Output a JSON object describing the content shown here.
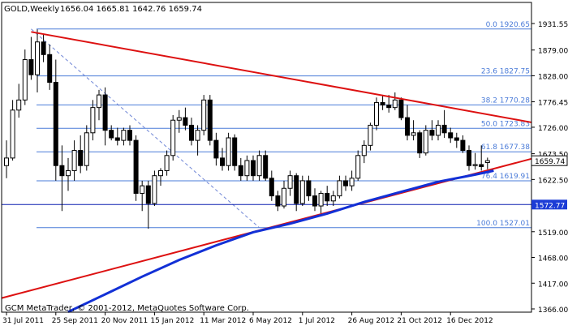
{
  "header": {
    "symbol_period": "GOLD,Weekly",
    "ohlc": "1656.04 1665.81 1642.76 1659.74"
  },
  "footer": {
    "copyright": "GCM MetaTrader, © 2001-2012, MetaQuotes Software Corp."
  },
  "colors": {
    "background": "#ffffff",
    "axis": "#000000",
    "candle": "#000000",
    "fib": "#4a7bd8",
    "fib_dashed": "#6f86d6",
    "trendline": "#dd1111",
    "moving_average": "#1230d6",
    "horizontal_line": "#0a1fb0",
    "price_box": "#1c3cd6"
  },
  "chart_data": {
    "type": "candlestick",
    "symbol": "GOLD",
    "period": "Weekly",
    "last_price": "1659.74",
    "ylim": [
      1366.0,
      1940.0
    ],
    "y_ticks": [
      "1931.55",
      "1879.00",
      "1828.00",
      "1776.45",
      "1726.00",
      "1673.50",
      "1622.50",
      "1519.00",
      "1468.00",
      "1417.00",
      "1366.00"
    ],
    "x_ticks": [
      "31 Jul 2011",
      "25 Sep 2011",
      "20 Nov 2011",
      "15 Jan 2012",
      "11 Mar 2012",
      "6 May 2012",
      "1 Jul 2012",
      "26 Aug 2012",
      "21 Oct 2012",
      "16 Dec 2012"
    ],
    "x_tick_index": [
      0,
      8,
      16,
      24,
      32,
      40,
      48,
      56,
      64,
      72
    ],
    "fib_levels": [
      {
        "label": "0.0 1920.65",
        "value": 1920.65
      },
      {
        "label": "23.6 1827.75",
        "value": 1827.75
      },
      {
        "label": "38.2 1770.28",
        "value": 1770.28
      },
      {
        "label": "50.0 1723.83",
        "value": 1723.83
      },
      {
        "label": "61.8 1677.38",
        "value": 1677.38
      },
      {
        "label": "76.4 1619.91",
        "value": 1619.91
      },
      {
        "label": "100.0 1527.01",
        "value": 1527.01
      }
    ],
    "horizontal_line": {
      "label": "1572.77",
      "value": 1572.77
    },
    "candles": [
      {
        "o": 1650,
        "h": 1700,
        "l": 1625,
        "c": 1665
      },
      {
        "o": 1665,
        "h": 1780,
        "l": 1660,
        "c": 1760
      },
      {
        "o": 1760,
        "h": 1812,
        "l": 1745,
        "c": 1780
      },
      {
        "o": 1780,
        "h": 1880,
        "l": 1770,
        "c": 1860
      },
      {
        "o": 1860,
        "h": 1905,
        "l": 1820,
        "c": 1830
      },
      {
        "o": 1830,
        "h": 1920,
        "l": 1795,
        "c": 1895
      },
      {
        "o": 1895,
        "h": 1910,
        "l": 1855,
        "c": 1870
      },
      {
        "o": 1870,
        "h": 1890,
        "l": 1800,
        "c": 1815
      },
      {
        "o": 1815,
        "h": 1860,
        "l": 1620,
        "c": 1650
      },
      {
        "o": 1650,
        "h": 1690,
        "l": 1560,
        "c": 1630
      },
      {
        "o": 1630,
        "h": 1665,
        "l": 1600,
        "c": 1640
      },
      {
        "o": 1640,
        "h": 1700,
        "l": 1620,
        "c": 1680
      },
      {
        "o": 1680,
        "h": 1710,
        "l": 1635,
        "c": 1650
      },
      {
        "o": 1650,
        "h": 1730,
        "l": 1640,
        "c": 1715
      },
      {
        "o": 1715,
        "h": 1780,
        "l": 1700,
        "c": 1765
      },
      {
        "o": 1765,
        "h": 1800,
        "l": 1740,
        "c": 1790
      },
      {
        "o": 1790,
        "h": 1805,
        "l": 1690,
        "c": 1720
      },
      {
        "o": 1720,
        "h": 1730,
        "l": 1700,
        "c": 1705
      },
      {
        "o": 1705,
        "h": 1725,
        "l": 1690,
        "c": 1700
      },
      {
        "o": 1700,
        "h": 1725,
        "l": 1690,
        "c": 1720
      },
      {
        "o": 1720,
        "h": 1730,
        "l": 1690,
        "c": 1700
      },
      {
        "o": 1700,
        "h": 1710,
        "l": 1580,
        "c": 1595
      },
      {
        "o": 1595,
        "h": 1620,
        "l": 1560,
        "c": 1610
      },
      {
        "o": 1610,
        "h": 1620,
        "l": 1525,
        "c": 1575
      },
      {
        "o": 1575,
        "h": 1640,
        "l": 1570,
        "c": 1630
      },
      {
        "o": 1630,
        "h": 1645,
        "l": 1610,
        "c": 1640
      },
      {
        "o": 1640,
        "h": 1680,
        "l": 1630,
        "c": 1670
      },
      {
        "o": 1670,
        "h": 1750,
        "l": 1660,
        "c": 1740
      },
      {
        "o": 1740,
        "h": 1760,
        "l": 1715,
        "c": 1745
      },
      {
        "o": 1745,
        "h": 1765,
        "l": 1720,
        "c": 1730
      },
      {
        "o": 1730,
        "h": 1745,
        "l": 1690,
        "c": 1700
      },
      {
        "o": 1700,
        "h": 1730,
        "l": 1670,
        "c": 1720
      },
      {
        "o": 1720,
        "h": 1790,
        "l": 1710,
        "c": 1780
      },
      {
        "o": 1780,
        "h": 1790,
        "l": 1690,
        "c": 1700
      },
      {
        "o": 1700,
        "h": 1715,
        "l": 1650,
        "c": 1665
      },
      {
        "o": 1665,
        "h": 1685,
        "l": 1640,
        "c": 1650
      },
      {
        "o": 1650,
        "h": 1715,
        "l": 1640,
        "c": 1705
      },
      {
        "o": 1705,
        "h": 1712,
        "l": 1640,
        "c": 1650
      },
      {
        "o": 1650,
        "h": 1665,
        "l": 1620,
        "c": 1630
      },
      {
        "o": 1630,
        "h": 1670,
        "l": 1620,
        "c": 1660
      },
      {
        "o": 1660,
        "h": 1670,
        "l": 1620,
        "c": 1630
      },
      {
        "o": 1630,
        "h": 1680,
        "l": 1620,
        "c": 1670
      },
      {
        "o": 1670,
        "h": 1680,
        "l": 1620,
        "c": 1625
      },
      {
        "o": 1625,
        "h": 1640,
        "l": 1580,
        "c": 1590
      },
      {
        "o": 1590,
        "h": 1600,
        "l": 1560,
        "c": 1570
      },
      {
        "o": 1570,
        "h": 1620,
        "l": 1565,
        "c": 1605
      },
      {
        "o": 1605,
        "h": 1640,
        "l": 1590,
        "c": 1630
      },
      {
        "o": 1630,
        "h": 1635,
        "l": 1560,
        "c": 1575
      },
      {
        "o": 1575,
        "h": 1630,
        "l": 1570,
        "c": 1620
      },
      {
        "o": 1620,
        "h": 1630,
        "l": 1580,
        "c": 1590
      },
      {
        "o": 1590,
        "h": 1605,
        "l": 1560,
        "c": 1570
      },
      {
        "o": 1570,
        "h": 1600,
        "l": 1550,
        "c": 1595
      },
      {
        "o": 1595,
        "h": 1610,
        "l": 1570,
        "c": 1580
      },
      {
        "o": 1580,
        "h": 1600,
        "l": 1570,
        "c": 1590
      },
      {
        "o": 1590,
        "h": 1630,
        "l": 1585,
        "c": 1620
      },
      {
        "o": 1620,
        "h": 1630,
        "l": 1600,
        "c": 1610
      },
      {
        "o": 1610,
        "h": 1640,
        "l": 1600,
        "c": 1625
      },
      {
        "o": 1625,
        "h": 1680,
        "l": 1620,
        "c": 1670
      },
      {
        "o": 1670,
        "h": 1700,
        "l": 1655,
        "c": 1690
      },
      {
        "o": 1690,
        "h": 1735,
        "l": 1680,
        "c": 1730
      },
      {
        "o": 1730,
        "h": 1785,
        "l": 1720,
        "c": 1775
      },
      {
        "o": 1775,
        "h": 1790,
        "l": 1760,
        "c": 1770
      },
      {
        "o": 1770,
        "h": 1790,
        "l": 1755,
        "c": 1765
      },
      {
        "o": 1765,
        "h": 1795,
        "l": 1760,
        "c": 1780
      },
      {
        "o": 1780,
        "h": 1785,
        "l": 1740,
        "c": 1745
      },
      {
        "o": 1745,
        "h": 1770,
        "l": 1700,
        "c": 1710
      },
      {
        "o": 1710,
        "h": 1740,
        "l": 1700,
        "c": 1715
      },
      {
        "o": 1715,
        "h": 1720,
        "l": 1665,
        "c": 1675
      },
      {
        "o": 1675,
        "h": 1730,
        "l": 1670,
        "c": 1720
      },
      {
        "o": 1720,
        "h": 1740,
        "l": 1700,
        "c": 1710
      },
      {
        "o": 1710,
        "h": 1740,
        "l": 1700,
        "c": 1730
      },
      {
        "o": 1730,
        "h": 1760,
        "l": 1705,
        "c": 1715
      },
      {
        "o": 1715,
        "h": 1725,
        "l": 1695,
        "c": 1705
      },
      {
        "o": 1705,
        "h": 1715,
        "l": 1685,
        "c": 1700
      },
      {
        "o": 1700,
        "h": 1710,
        "l": 1675,
        "c": 1680
      },
      {
        "o": 1680,
        "h": 1690,
        "l": 1640,
        "c": 1650
      },
      {
        "o": 1650,
        "h": 1675,
        "l": 1642,
        "c": 1652
      },
      {
        "o": 1652,
        "h": 1690,
        "l": 1640,
        "c": 1648
      },
      {
        "o": 1656.04,
        "h": 1665.81,
        "l": 1642.76,
        "c": 1659.74
      }
    ],
    "trendlines": [
      {
        "name": "upper",
        "from": {
          "i": 4,
          "v": 1915
        },
        "to": {
          "i": 80,
          "v": 1747
        }
      },
      {
        "name": "lower",
        "from": {
          "i": 0,
          "v": 1390
        },
        "to": {
          "i": 80,
          "v": 1647
        }
      }
    ],
    "fib_anchor": {
      "from": {
        "i": 4,
        "v": 1920.65
      },
      "to": {
        "i": 41,
        "v": 1527.01
      }
    },
    "moving_average": {
      "points": [
        {
          "i": 10,
          "v": 1360
        },
        {
          "i": 16,
          "v": 1395
        },
        {
          "i": 22,
          "v": 1430
        },
        {
          "i": 28,
          "v": 1463
        },
        {
          "i": 34,
          "v": 1492
        },
        {
          "i": 40,
          "v": 1518
        },
        {
          "i": 46,
          "v": 1535
        },
        {
          "i": 52,
          "v": 1555
        },
        {
          "i": 58,
          "v": 1578
        },
        {
          "i": 64,
          "v": 1598
        },
        {
          "i": 70,
          "v": 1618
        },
        {
          "i": 76,
          "v": 1632
        },
        {
          "i": 79,
          "v": 1640
        }
      ]
    }
  }
}
